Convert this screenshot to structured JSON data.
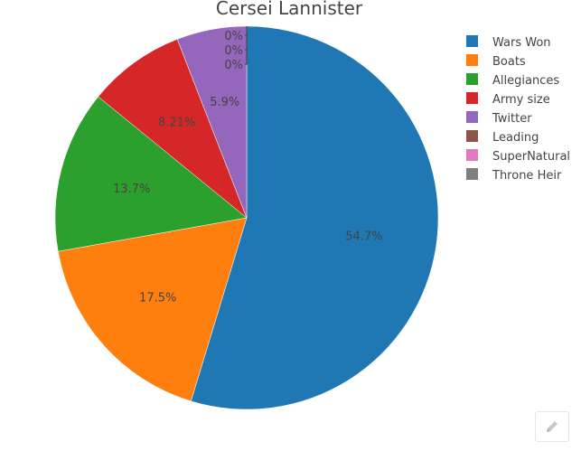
{
  "chart_data": {
    "type": "pie",
    "title": "Cersei Lannister",
    "legend_position": "top-right",
    "slices": [
      {
        "name": "Wars Won",
        "value": 54.7,
        "label": "54.7%",
        "color": "#1f77b4"
      },
      {
        "name": "Boats",
        "value": 17.5,
        "label": "17.5%",
        "color": "#ff7f0e"
      },
      {
        "name": "Allegiances",
        "value": 13.7,
        "label": "13.7%",
        "color": "#2ca02c"
      },
      {
        "name": "Army size",
        "value": 8.21,
        "label": "8.21%",
        "color": "#d62728"
      },
      {
        "name": "Twitter",
        "value": 5.9,
        "label": "5.9%",
        "color": "#9467bd"
      },
      {
        "name": "Leading",
        "value": 0,
        "label": "0%",
        "color": "#8c564b"
      },
      {
        "name": "SuperNatural",
        "value": 0,
        "label": "0%",
        "color": "#e377c2"
      },
      {
        "name": "Throne Heir",
        "value": 0,
        "label": "0%",
        "color": "#7f7f7f"
      }
    ]
  },
  "toolbar": {
    "edit_icon": "pencil-icon"
  }
}
